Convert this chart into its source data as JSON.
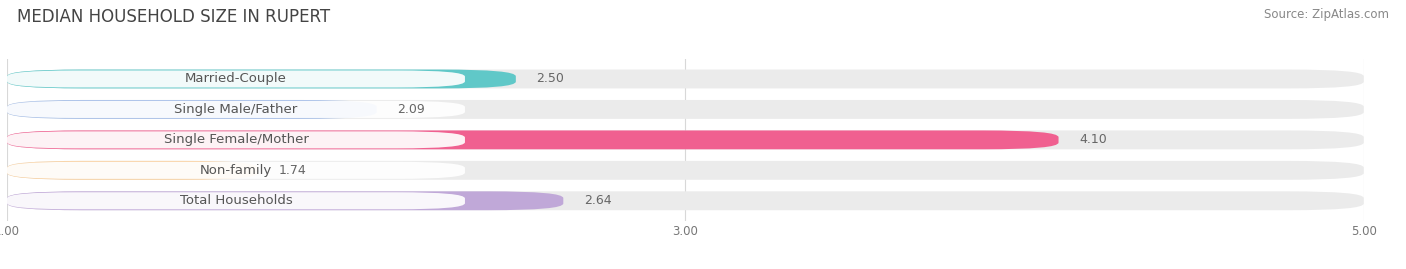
{
  "title": "MEDIAN HOUSEHOLD SIZE IN RUPERT",
  "source": "Source: ZipAtlas.com",
  "categories": [
    "Married-Couple",
    "Single Male/Father",
    "Single Female/Mother",
    "Non-family",
    "Total Households"
  ],
  "values": [
    2.5,
    2.09,
    4.1,
    1.74,
    2.64
  ],
  "bar_colors": [
    "#60c8c8",
    "#a8c0e8",
    "#f06090",
    "#f8d0a0",
    "#c0a8d8"
  ],
  "xlim": [
    1.0,
    5.0
  ],
  "xticks": [
    1.0,
    3.0,
    5.0
  ],
  "bar_height": 0.62,
  "background_color": "#ffffff",
  "bar_bg_color": "#ebebeb",
  "title_fontsize": 12,
  "label_fontsize": 9.5,
  "value_fontsize": 9,
  "source_fontsize": 8.5,
  "title_color": "#444444",
  "label_color": "#555555",
  "value_color": "#666666",
  "source_color": "#888888"
}
